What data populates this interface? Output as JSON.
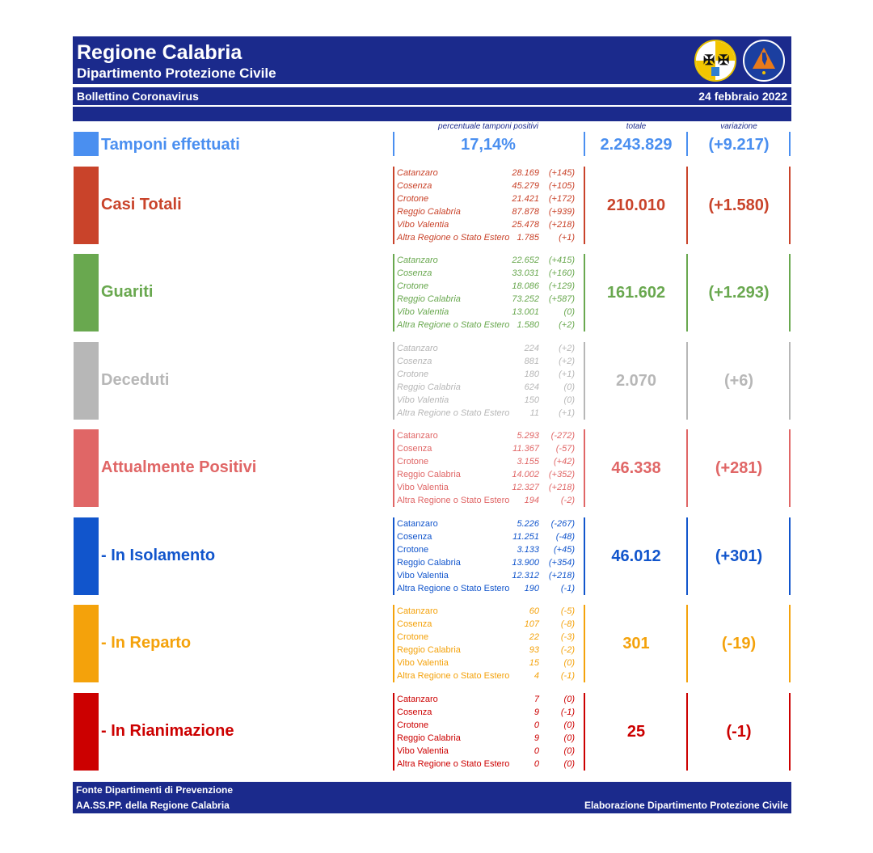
{
  "header": {
    "title": "Regione Calabria",
    "subtitle": "Dipartimento Protezione Civile",
    "bulletin": "Bollettino Coronavirus",
    "date": "24 febbraio 2022",
    "logo_text": "PROTEZIONE CIVILE Regione Calabria"
  },
  "columns": {
    "percent": "percentuale tamponi positivi",
    "total": "totale",
    "variation": "variazione"
  },
  "tamponi": {
    "label": "Tamponi effettuati",
    "percent": "17,14%",
    "total": "2.243.829",
    "variation": "(+9.217)",
    "color": "#4a8ff0"
  },
  "sections": [
    {
      "label": "Casi Totali",
      "color": "#c9432a",
      "total": "210.010",
      "variation": "(+1.580)",
      "italic": true,
      "rows": [
        [
          "Catanzaro",
          "28.169",
          "(+145)"
        ],
        [
          "Cosenza",
          "45.279",
          "(+105)"
        ],
        [
          "Crotone",
          "21.421",
          "(+172)"
        ],
        [
          "Reggio Calabria",
          "87.878",
          "(+939)"
        ],
        [
          "Vibo Valentia",
          "25.478",
          "(+218)"
        ],
        [
          "Altra Regione o Stato Estero",
          "1.785",
          "(+1)"
        ]
      ]
    },
    {
      "label": "Guariti",
      "color": "#69a84f",
      "total": "161.602",
      "variation": "(+1.293)",
      "italic": true,
      "rows": [
        [
          "Catanzaro",
          "22.652",
          "(+415)"
        ],
        [
          "Cosenza",
          "33.031",
          "(+160)"
        ],
        [
          "Crotone",
          "18.086",
          "(+129)"
        ],
        [
          "Reggio Calabria",
          "73.252",
          "(+587)"
        ],
        [
          "Vibo Valentia",
          "13.001",
          "(0)"
        ],
        [
          "Altra Regione o Stato Estero",
          "1.580",
          "(+2)"
        ]
      ]
    },
    {
      "label": "Deceduti",
      "color": "#b7b7b7",
      "total": "2.070",
      "variation": "(+6)",
      "italic": true,
      "rows": [
        [
          "Catanzaro",
          "224",
          "(+2)"
        ],
        [
          "Cosenza",
          "881",
          "(+2)"
        ],
        [
          "Crotone",
          "180",
          "(+1)"
        ],
        [
          "Reggio Calabria",
          "624",
          "(0)"
        ],
        [
          "Vibo Valentia",
          "150",
          "(0)"
        ],
        [
          "Altra Regione o Stato Estero",
          "11",
          "(+1)"
        ]
      ]
    },
    {
      "label": "Attualmente Positivi",
      "color": "#e06666",
      "total": "46.338",
      "variation": "(+281)",
      "italic": false,
      "rows": [
        [
          "Catanzaro",
          "5.293",
          "(-272)"
        ],
        [
          "Cosenza",
          "11.367",
          "(-57)"
        ],
        [
          "Crotone",
          "3.155",
          "(+42)"
        ],
        [
          "Reggio Calabria",
          "14.002",
          "(+352)"
        ],
        [
          "Vibo Valentia",
          "12.327",
          "(+218)"
        ],
        [
          "Altra Regione o Stato Estero",
          "194",
          "(-2)"
        ]
      ]
    },
    {
      "label": " - In Isolamento",
      "color": "#1155cc",
      "total": "46.012",
      "variation": "(+301)",
      "italic": false,
      "rows": [
        [
          "Catanzaro",
          "5.226",
          "(-267)"
        ],
        [
          "Cosenza",
          "11.251",
          "(-48)"
        ],
        [
          "Crotone",
          "3.133",
          "(+45)"
        ],
        [
          "Reggio Calabria",
          "13.900",
          "(+354)"
        ],
        [
          "Vibo Valentia",
          "12.312",
          "(+218)"
        ],
        [
          "Altra Regione o Stato Estero",
          "190",
          "(-1)"
        ]
      ]
    },
    {
      "label": " - In Reparto",
      "color": "#f4a20b",
      "total": "301",
      "variation": "(-19)",
      "italic": false,
      "rows": [
        [
          "Catanzaro",
          "60",
          "(-5)"
        ],
        [
          "Cosenza",
          "107",
          "(-8)"
        ],
        [
          "Crotone",
          "22",
          "(-3)"
        ],
        [
          "Reggio Calabria",
          "93",
          "(-2)"
        ],
        [
          "Vibo Valentia",
          "15",
          "(0)"
        ],
        [
          "Altra Regione o Stato Estero",
          "4",
          "(-1)"
        ]
      ]
    },
    {
      "label": " - In Rianimazione",
      "color": "#cc0000",
      "total": "25",
      "variation": "(-1)",
      "italic": false,
      "rows": [
        [
          "Catanzaro",
          "7",
          "(0)"
        ],
        [
          "Cosenza",
          "9",
          "(-1)"
        ],
        [
          "Crotone",
          "0",
          "(0)"
        ],
        [
          "Reggio Calabria",
          "9",
          "(0)"
        ],
        [
          "Vibo Valentia",
          "0",
          "(0)"
        ],
        [
          "Altra Regione o Stato Estero",
          "0",
          "(0)"
        ]
      ]
    }
  ],
  "footer": {
    "line1": "Fonte Dipartimenti di Prevenzione",
    "line2": "AA.SS.PP.  della Regione Calabria",
    "right": "Elaborazione Dipartimento Protezione Civile"
  }
}
